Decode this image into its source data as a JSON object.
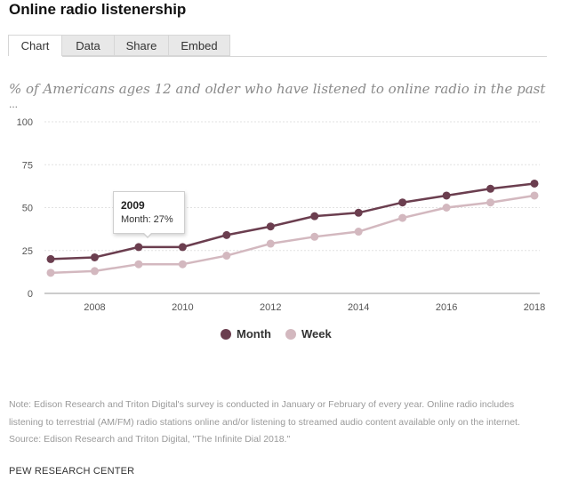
{
  "title": "Online radio listenership",
  "tabs": [
    "Chart",
    "Data",
    "Share",
    "Embed"
  ],
  "subtitle": "% of Americans ages 12 and older who have listened to online radio in the past",
  "ellipsis": "...",
  "legend": {
    "month": "Month",
    "week": "Week"
  },
  "tooltip": {
    "year": "2009",
    "text": "Month: 27%"
  },
  "note": {
    "line1": "Note: Edison Research and Triton Digital's survey is conducted in January or February of every year. Online radio includes",
    "line2": "listening to terrestrial (AM/FM) radio stations online and/or listening to streamed audio content available only on the internet.",
    "line3": "Source: Edison Research and Triton Digital, \"The Infinite Dial 2018.\""
  },
  "footer": "PEW RESEARCH CENTER",
  "colors": {
    "month": "#6b3e4f",
    "week": "#d3b8bf",
    "grid": "#e2e2e2"
  },
  "chart_data": {
    "type": "line",
    "title": "Online radio listenership",
    "ylabel": "% of Americans ages 12 and older",
    "xlabel": "",
    "x": [
      2007,
      2008,
      2009,
      2010,
      2011,
      2012,
      2013,
      2014,
      2015,
      2016,
      2017,
      2018
    ],
    "xticks": [
      2008,
      2010,
      2012,
      2014,
      2016,
      2018
    ],
    "yticks": [
      0,
      25,
      50,
      75,
      100
    ],
    "xlim": [
      2007,
      2018
    ],
    "ylim": [
      0,
      100
    ],
    "series": [
      {
        "name": "Month",
        "values": [
          20,
          21,
          27,
          27,
          34,
          39,
          45,
          47,
          53,
          57,
          61,
          64
        ]
      },
      {
        "name": "Week",
        "values": [
          12,
          13,
          17,
          17,
          22,
          29,
          33,
          36,
          44,
          50,
          53,
          57
        ]
      }
    ]
  }
}
